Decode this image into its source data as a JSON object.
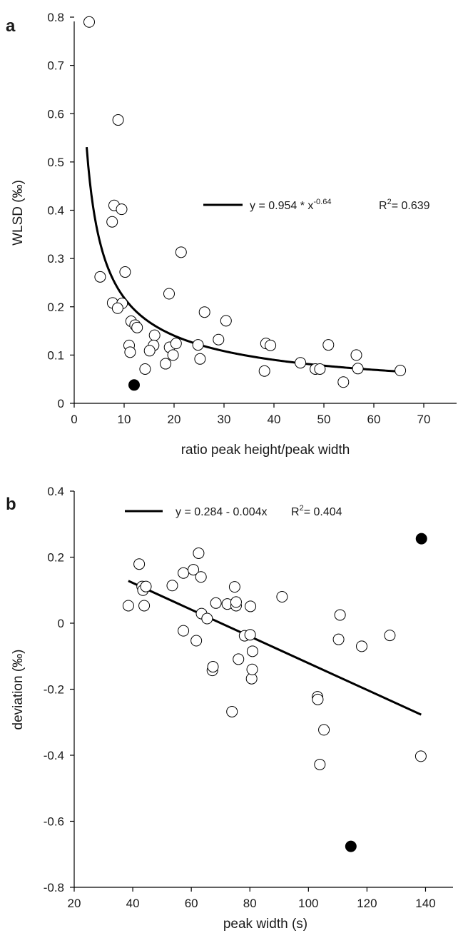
{
  "chart_data": [
    {
      "panel_label": "a",
      "type": "scatter",
      "xlabel": "ratio peak height/peak width",
      "ylabel": "WLSD (‰)",
      "xlim": [
        0,
        70
      ],
      "ylim": [
        0,
        0.8
      ],
      "x_ticks": [
        0,
        10,
        20,
        30,
        40,
        50,
        60,
        70
      ],
      "y_ticks": [
        0,
        0.1,
        0.2,
        0.3,
        0.4,
        0.5,
        0.6,
        0.7,
        0.8
      ],
      "x_tick_labels": [
        "0",
        "10",
        "20",
        "30",
        "40",
        "50",
        "60",
        "70"
      ],
      "y_tick_labels": [
        "0",
        "0.1",
        "0.2",
        "0.3",
        "0.4",
        "0.5",
        "0.6",
        "0.7",
        "0.8"
      ],
      "grid": false,
      "legend_position": "center-right",
      "fit": {
        "model": "power",
        "a": 0.954,
        "b": -0.64,
        "x_range": [
          2.5,
          65.5
        ],
        "equation_main": "y = 0.954 * x",
        "equation_exponent": "-0.64",
        "r2_prefix": "R",
        "r2_sup": "2",
        "r2_value": "= 0.639"
      },
      "series": [
        {
          "marker": "open",
          "points": [
            [
              3,
              0.79
            ],
            [
              8.8,
              0.587
            ],
            [
              8,
              0.41
            ],
            [
              9.5,
              0.402
            ],
            [
              7.6,
              0.376
            ],
            [
              10.2,
              0.272
            ],
            [
              21.4,
              0.313
            ],
            [
              5.2,
              0.262
            ],
            [
              19,
              0.227
            ],
            [
              7.7,
              0.208
            ],
            [
              9.6,
              0.207
            ],
            [
              8.7,
              0.197
            ],
            [
              11.4,
              0.17
            ],
            [
              12.2,
              0.162
            ],
            [
              12.6,
              0.157
            ],
            [
              16.1,
              0.141
            ],
            [
              11,
              0.12
            ],
            [
              11.2,
              0.106
            ],
            [
              15.9,
              0.12
            ],
            [
              19.1,
              0.116
            ],
            [
              15.1,
              0.109
            ],
            [
              20.4,
              0.124
            ],
            [
              19.8,
              0.1
            ],
            [
              14.2,
              0.071
            ],
            [
              18.3,
              0.082
            ],
            [
              24.8,
              0.121
            ],
            [
              25.2,
              0.092
            ],
            [
              26.1,
              0.189
            ],
            [
              28.9,
              0.132
            ],
            [
              30.4,
              0.171
            ],
            [
              38.4,
              0.124
            ],
            [
              39.3,
              0.12
            ],
            [
              38.1,
              0.067
            ],
            [
              45.3,
              0.084
            ],
            [
              48.3,
              0.071
            ],
            [
              49.2,
              0.071
            ],
            [
              50.9,
              0.121
            ],
            [
              53.9,
              0.044
            ],
            [
              56.5,
              0.1
            ],
            [
              56.8,
              0.072
            ],
            [
              65.3,
              0.068
            ]
          ]
        },
        {
          "marker": "filled",
          "points": [
            [
              12,
              0.038
            ]
          ]
        }
      ]
    },
    {
      "panel_label": "b",
      "type": "scatter",
      "xlabel": "peak width (s)",
      "ylabel": "deviation (‰)",
      "xlim": [
        20,
        145
      ],
      "ylim": [
        -0.8,
        0.4
      ],
      "x_ticks": [
        20,
        40,
        60,
        80,
        100,
        120,
        140
      ],
      "y_ticks": [
        -0.8,
        -0.6,
        -0.4,
        -0.2,
        0,
        0.2,
        0.4
      ],
      "x_tick_labels": [
        "20",
        "40",
        "60",
        "80",
        "100",
        "120",
        "140"
      ],
      "y_tick_labels": [
        "-0.8",
        "-0.6",
        "-0.4",
        "-0.2",
        "0",
        "0.2",
        "0.4"
      ],
      "grid": false,
      "legend_position": "top-center",
      "fit": {
        "model": "linear",
        "intercept": 0.284,
        "slope": -0.004,
        "x_range": [
          38.5,
          138.5
        ],
        "y_range": [
          0.128,
          -0.277
        ],
        "equation_main": "y = 0.284 - 0.004x",
        "r2_prefix": "R",
        "r2_sup": "2",
        "r2_value": "= 0.404"
      },
      "series": [
        {
          "marker": "open",
          "points": [
            [
              38.5,
              0.053
            ],
            [
              42.2,
              0.179
            ],
            [
              43.2,
              0.111
            ],
            [
              43.5,
              0.1
            ],
            [
              44.5,
              0.111
            ],
            [
              43.9,
              0.053
            ],
            [
              53.5,
              0.114
            ],
            [
              57.3,
              0.152
            ],
            [
              57.3,
              -0.023
            ],
            [
              60.7,
              0.162
            ],
            [
              61.7,
              -0.053
            ],
            [
              62.5,
              0.212
            ],
            [
              63.3,
              0.14
            ],
            [
              63.5,
              0.029
            ],
            [
              65.4,
              0.014
            ],
            [
              67.2,
              -0.143
            ],
            [
              67.4,
              -0.132
            ],
            [
              68.4,
              0.061
            ],
            [
              72.3,
              0.058
            ],
            [
              73.9,
              -0.268
            ],
            [
              74.8,
              0.11
            ],
            [
              75.3,
              0.053
            ],
            [
              75.3,
              0.064
            ],
            [
              76.1,
              -0.109
            ],
            [
              78.2,
              -0.038
            ],
            [
              80.1,
              -0.035
            ],
            [
              80.2,
              0.051
            ],
            [
              80.6,
              -0.168
            ],
            [
              80.8,
              -0.14
            ],
            [
              80.9,
              -0.085
            ],
            [
              91,
              0.08
            ],
            [
              103.1,
              -0.223
            ],
            [
              103.2,
              -0.231
            ],
            [
              103.9,
              -0.428
            ],
            [
              105.3,
              -0.323
            ],
            [
              110.3,
              -0.049
            ],
            [
              110.8,
              0.025
            ],
            [
              118.2,
              -0.07
            ],
            [
              127.8,
              -0.037
            ],
            [
              138.4,
              -0.403
            ]
          ]
        },
        {
          "marker": "filled",
          "points": [
            [
              138.6,
              0.256
            ],
            [
              114.5,
              -0.676
            ]
          ]
        }
      ]
    }
  ]
}
